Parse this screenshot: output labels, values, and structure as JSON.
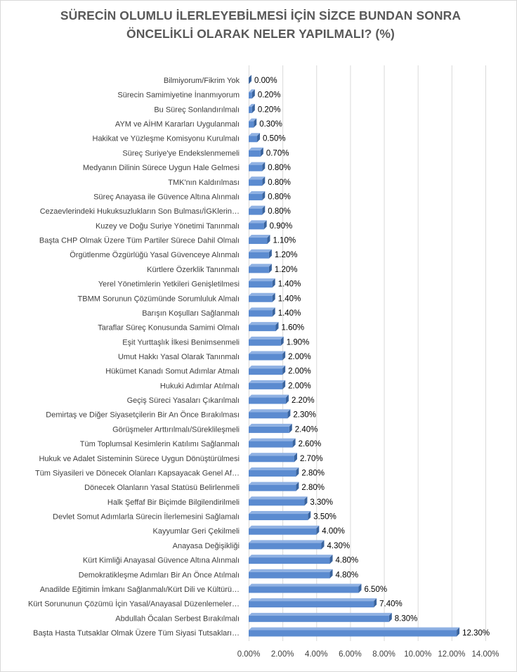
{
  "chart_data": {
    "type": "bar",
    "orientation": "horizontal",
    "title_lines": [
      "SÜRECİN OLUMLU İLERLEYEBİLMESİ İÇİN SİZCE BUNDAN SONRA",
      "ÖNCELİKLİ OLARAK NELER YAPILMALI? (%)"
    ],
    "categories": [
      "Bilmiyorum/Fikrim Yok",
      "Sürecin Samimiyetine İnanmıyorum",
      "Bu Süreç Sonlandırılmalı",
      "AYM ve AİHM Kararları Uygulanmalı",
      "Hakikat ve Yüzleşme Komisyonu Kurulmalı",
      "Süreç Suriye'ye Endekslenmemeli",
      "Medyanın Dilinin Sürece Uygun Hale Gelmesi",
      "TMK'nın Kaldırılması",
      "Süreç Anayasa ile Güvence Altına Alınmalı",
      "Cezaevlerindeki Hukuksuzlukların Son Bulması/İGKlerin…",
      "Kuzey ve Doğu Suriye Yönetimi Tanınmalı",
      "Başta CHP Olmak Üzere Tüm Partiler Sürece Dahil Olmalı",
      "Örgütlenme Özgürlüğü Yasal Güvenceye Alınmalı",
      "Kürtlere Özerklik Tanınmalı",
      "Yerel Yönetimlerin Yetkileri Genişletilmesi",
      "TBMM Sorunun Çözümünde Sorumluluk Almalı",
      "Barışın Koşulları Sağlanmalı",
      "Taraflar Süreç Konusunda Samimi Olmalı",
      "Eşit Yurttaşlık İlkesi Benimsenmeli",
      "Umut Hakkı Yasal Olarak Tanınmalı",
      "Hükümet Kanadı Somut Adımlar Atmalı",
      "Hukuki Adımlar Atılmalı",
      "Geçiş Süreci Yasaları Çıkarılmalı",
      "Demirtaş ve Diğer Siyasetçilerin Bir An Önce Bırakılması",
      "Görüşmeler Arttırılmalı/Süreklileşmeli",
      "Tüm Toplumsal Kesimlerin Katılımı Sağlanmalı",
      "Hukuk ve Adalet Sisteminin Sürece Uygun Dönüştürülmesi",
      "Tüm Siyasileri ve Dönecek Olanları Kapsayacak Genel Af…",
      "Dönecek Olanların Yasal Statüsü Belirlenmeli",
      "Halk Şeffaf Bir Biçimde Bilgilendirilmeli",
      "Devlet Somut Adımlarla Sürecin İlerlemesini Sağlamalı",
      "Kayyumlar Geri Çekilmeli",
      "Anayasa Değişikliği",
      "Kürt Kimliği Anayasal Güvence Altına Alınmalı",
      "Demokratikleşme Adımları Bir An Önce Atılmalı",
      "Anadilde Eğitimin İmkanı Sağlanmalı/Kürt Dili ve Kültürü…",
      "Kürt Sorununun Çözümü İçin Yasal/Anayasal Düzenlemeler…",
      "Abdullah Öcalan Serbest Bırakılmalı",
      "Başta Hasta Tutsaklar Olmak Üzere Tüm Siyasi Tutsakları…"
    ],
    "values": [
      0.0,
      0.2,
      0.2,
      0.3,
      0.5,
      0.7,
      0.8,
      0.8,
      0.8,
      0.8,
      0.9,
      1.1,
      1.2,
      1.2,
      1.4,
      1.4,
      1.4,
      1.6,
      1.9,
      2.0,
      2.0,
      2.0,
      2.2,
      2.3,
      2.4,
      2.6,
      2.7,
      2.8,
      2.8,
      3.3,
      3.5,
      4.0,
      4.3,
      4.8,
      4.8,
      6.5,
      7.4,
      8.3,
      12.3
    ],
    "value_labels": [
      "0.00%",
      "0.20%",
      "0.20%",
      "0.30%",
      "0.50%",
      "0.70%",
      "0.80%",
      "0.80%",
      "0.80%",
      "0.80%",
      "0.90%",
      "1.10%",
      "1.20%",
      "1.20%",
      "1.40%",
      "1.40%",
      "1.40%",
      "1.60%",
      "1.90%",
      "2.00%",
      "2.00%",
      "2.00%",
      "2.20%",
      "2.30%",
      "2.40%",
      "2.60%",
      "2.70%",
      "2.80%",
      "2.80%",
      "3.30%",
      "3.50%",
      "4.00%",
      "4.30%",
      "4.80%",
      "4.80%",
      "6.50%",
      "7.40%",
      "8.30%",
      "12.30%"
    ],
    "x_ticks": [
      0,
      2,
      4,
      6,
      8,
      10,
      12,
      14
    ],
    "x_tick_labels": [
      "0.00%",
      "2.00%",
      "4.00%",
      "6.00%",
      "8.00%",
      "10.00%",
      "12.00%",
      "14.00%"
    ],
    "xlim": [
      0,
      14
    ],
    "xlabel": "",
    "ylabel": "",
    "grid": true,
    "legend": "none",
    "colors": {
      "bar_front": "#5b8bd0",
      "bar_top": "#8fb1e3",
      "bar_side": "#3a649e",
      "grid": "#d9d9d9",
      "text": "#404040",
      "title": "#595959"
    }
  }
}
